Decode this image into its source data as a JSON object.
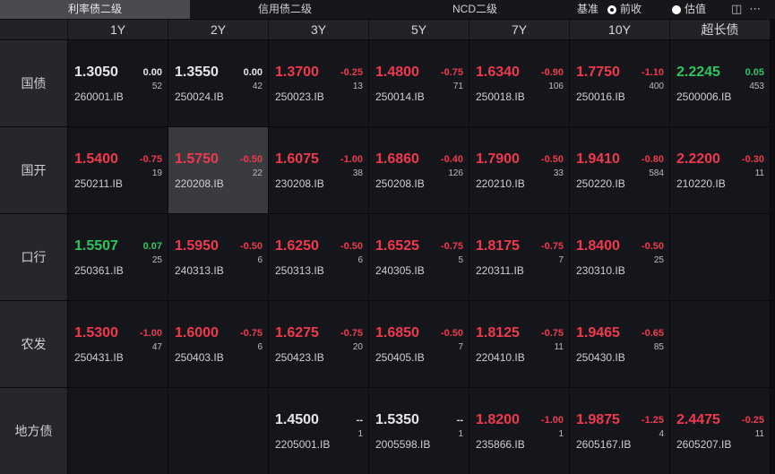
{
  "tabs": [
    {
      "label": "利率债二级",
      "active": true
    },
    {
      "label": "信用债二级",
      "active": false
    },
    {
      "label": "NCD二级",
      "active": false
    }
  ],
  "basis": {
    "label": "基准",
    "options": [
      {
        "label": "前收",
        "selected": true
      },
      {
        "label": "估值",
        "selected": false
      }
    ]
  },
  "toolbar": {
    "layout_icon": "layout-panel-icon",
    "more_icon": "more-dots-icon"
  },
  "colors": {
    "up": "#ee3a4c",
    "down": "#2fc45d",
    "flat": "#e6e6e6"
  },
  "columns": [
    "1Y",
    "2Y",
    "3Y",
    "5Y",
    "7Y",
    "10Y",
    "超长债"
  ],
  "rows": [
    {
      "label": "国债",
      "cells": [
        {
          "yield": "1.3050",
          "change": "0.00",
          "count": "52",
          "code": "260001.IB",
          "color": "white"
        },
        {
          "yield": "1.3550",
          "change": "0.00",
          "count": "42",
          "code": "250024.IB",
          "color": "white"
        },
        {
          "yield": "1.3700",
          "change": "-0.25",
          "count": "13",
          "code": "250023.IB",
          "color": "red"
        },
        {
          "yield": "1.4800",
          "change": "-0.75",
          "count": "71",
          "code": "250014.IB",
          "color": "red"
        },
        {
          "yield": "1.6340",
          "change": "-0.90",
          "count": "106",
          "code": "250018.IB",
          "color": "red"
        },
        {
          "yield": "1.7750",
          "change": "-1.10",
          "count": "400",
          "code": "250016.IB",
          "color": "red"
        },
        {
          "yield": "2.2245",
          "change": "0.05",
          "count": "453",
          "code": "2500006.IB",
          "color": "green"
        }
      ]
    },
    {
      "label": "国开",
      "cells": [
        {
          "yield": "1.5400",
          "change": "-0.75",
          "count": "19",
          "code": "250211.IB",
          "color": "red"
        },
        {
          "yield": "1.5750",
          "change": "-0.50",
          "count": "22",
          "code": "220208.IB",
          "color": "red",
          "selected": true
        },
        {
          "yield": "1.6075",
          "change": "-1.00",
          "count": "38",
          "code": "230208.IB",
          "color": "red"
        },
        {
          "yield": "1.6860",
          "change": "-0.40",
          "count": "126",
          "code": "250208.IB",
          "color": "red"
        },
        {
          "yield": "1.7900",
          "change": "-0.50",
          "count": "33",
          "code": "220210.IB",
          "color": "red"
        },
        {
          "yield": "1.9410",
          "change": "-0.80",
          "count": "584",
          "code": "250220.IB",
          "color": "red"
        },
        {
          "yield": "2.2200",
          "change": "-0.30",
          "count": "11",
          "code": "210220.IB",
          "color": "red"
        }
      ]
    },
    {
      "label": "口行",
      "cells": [
        {
          "yield": "1.5507",
          "change": "0.07",
          "count": "25",
          "code": "250361.IB",
          "color": "green"
        },
        {
          "yield": "1.5950",
          "change": "-0.50",
          "count": "6",
          "code": "240313.IB",
          "color": "red"
        },
        {
          "yield": "1.6250",
          "change": "-0.50",
          "count": "6",
          "code": "250313.IB",
          "color": "red"
        },
        {
          "yield": "1.6525",
          "change": "-0.75",
          "count": "5",
          "code": "240305.IB",
          "color": "red"
        },
        {
          "yield": "1.8175",
          "change": "-0.75",
          "count": "7",
          "code": "220311.IB",
          "color": "red"
        },
        {
          "yield": "1.8400",
          "change": "-0.50",
          "count": "25",
          "code": "230310.IB",
          "color": "red"
        },
        null
      ]
    },
    {
      "label": "农发",
      "cells": [
        {
          "yield": "1.5300",
          "change": "-1.00",
          "count": "47",
          "code": "250431.IB",
          "color": "red"
        },
        {
          "yield": "1.6000",
          "change": "-0.75",
          "count": "6",
          "code": "250403.IB",
          "color": "red"
        },
        {
          "yield": "1.6275",
          "change": "-0.75",
          "count": "20",
          "code": "250423.IB",
          "color": "red"
        },
        {
          "yield": "1.6850",
          "change": "-0.50",
          "count": "7",
          "code": "250405.IB",
          "color": "red"
        },
        {
          "yield": "1.8125",
          "change": "-0.75",
          "count": "11",
          "code": "220410.IB",
          "color": "red"
        },
        {
          "yield": "1.9465",
          "change": "-0.65",
          "count": "85",
          "code": "250430.IB",
          "color": "red"
        },
        null
      ]
    },
    {
      "label": "地方债",
      "cells": [
        null,
        null,
        {
          "yield": "1.4500",
          "change": "--",
          "count": "1",
          "code": "2205001.IB",
          "color": "white"
        },
        {
          "yield": "1.5350",
          "change": "--",
          "count": "1",
          "code": "2005598.IB",
          "color": "white"
        },
        {
          "yield": "1.8200",
          "change": "-1.00",
          "count": "1",
          "code": "235866.IB",
          "color": "red"
        },
        {
          "yield": "1.9875",
          "change": "-1.25",
          "count": "4",
          "code": "2605167.IB",
          "color": "red"
        },
        {
          "yield": "2.4475",
          "change": "-0.25",
          "count": "11",
          "code": "2605207.IB",
          "color": "red"
        }
      ]
    }
  ]
}
